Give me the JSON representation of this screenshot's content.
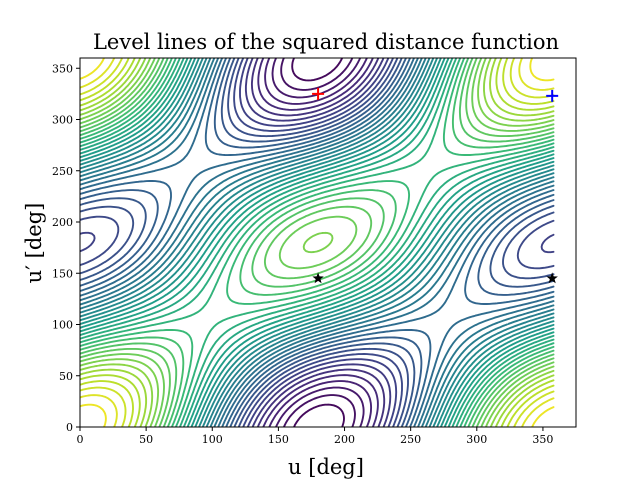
{
  "chart_data": {
    "type": "contour",
    "title": "Level lines of the squared distance function",
    "xlabel": "u [deg]",
    "ylabel": "u′ [deg]",
    "xlim": [
      0,
      375
    ],
    "ylim": [
      0,
      360
    ],
    "xticks": [
      0,
      50,
      100,
      150,
      200,
      250,
      300,
      350
    ],
    "yticks": [
      0,
      50,
      100,
      150,
      200,
      250,
      300,
      350
    ],
    "grid": false,
    "colormap": "viridis",
    "colormap_stops": [
      "#440154",
      "#482878",
      "#3e4989",
      "#31688e",
      "#26828e",
      "#1f9e89",
      "#35b779",
      "#6ece58",
      "#b5de2b",
      "#fde725"
    ],
    "maxima": [
      {
        "u": 180,
        "u_prime": 325
      },
      {
        "u": 185,
        "u_prime": 0
      }
    ],
    "saddle": {
      "u": 180,
      "u_prime": 145
    },
    "markers": [
      {
        "symbol": "plus",
        "color": "#ff0000",
        "u": 180,
        "u_prime": 325
      },
      {
        "symbol": "plus",
        "color": "#0000ff",
        "u": 357,
        "u_prime": 323
      },
      {
        "symbol": "star",
        "color": "#000000",
        "u": 180,
        "u_prime": 145
      },
      {
        "symbol": "star",
        "color": "#000000",
        "u": 357,
        "u_prime": 145
      }
    ]
  }
}
